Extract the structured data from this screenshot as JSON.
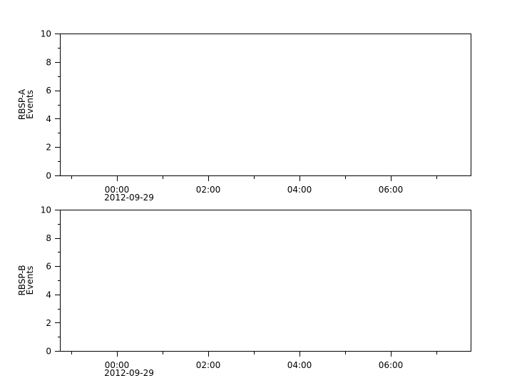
{
  "chart_data": [
    {
      "type": "line",
      "title": "",
      "ylabel_lines": [
        "RBSP-A",
        "Events"
      ],
      "xlabel": "",
      "x_range": [
        "2012-09-28 22:45",
        "2012-09-29 07:45"
      ],
      "ylim": [
        0,
        10
      ],
      "y_ticks": [
        "0",
        "2",
        "4",
        "6",
        "8",
        "10"
      ],
      "x_ticks": [
        {
          "time": "2012-09-29 00:00",
          "label": "00:00",
          "sublabel": "2012-09-29"
        },
        {
          "time": "2012-09-29 02:00",
          "label": "02:00",
          "sublabel": ""
        },
        {
          "time": "2012-09-29 04:00",
          "label": "04:00",
          "sublabel": ""
        },
        {
          "time": "2012-09-29 06:00",
          "label": "06:00",
          "sublabel": ""
        }
      ],
      "series": [],
      "grid": false
    },
    {
      "type": "line",
      "title": "",
      "ylabel_lines": [
        "RBSP-B",
        "Events"
      ],
      "xlabel": "",
      "x_range": [
        "2012-09-28 22:45",
        "2012-09-29 07:45"
      ],
      "ylim": [
        0,
        10
      ],
      "y_ticks": [
        "0",
        "2",
        "4",
        "6",
        "8",
        "10"
      ],
      "x_ticks": [
        {
          "time": "2012-09-29 00:00",
          "label": "00:00",
          "sublabel": "2012-09-29"
        },
        {
          "time": "2012-09-29 02:00",
          "label": "02:00",
          "sublabel": ""
        },
        {
          "time": "2012-09-29 04:00",
          "label": "04:00",
          "sublabel": ""
        },
        {
          "time": "2012-09-29 06:00",
          "label": "06:00",
          "sublabel": ""
        }
      ],
      "series": [],
      "grid": false
    }
  ]
}
